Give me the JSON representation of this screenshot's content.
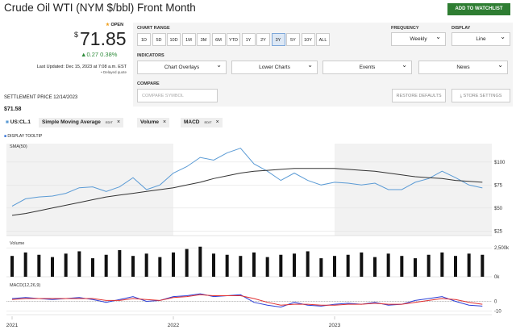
{
  "header": {
    "title": "Crude Oil WTI (NYM $/bbl) Front Month",
    "watchlist": "ADD TO WATCHLIST"
  },
  "quote": {
    "status": "OPEN",
    "currency": "$",
    "price": 71.85,
    "change": 0.27,
    "change_pct": "0.38%",
    "updated": "Last Updated: Dec 15, 2023 at 7:08 a.m. EST",
    "delayed": "Delayed quote"
  },
  "settlement": {
    "label": "SETTLEMENT PRICE 12/14/2023",
    "price": "$71.58"
  },
  "controls": {
    "chart_range_label": "CHART RANGE",
    "ranges": [
      "1D",
      "5D",
      "10D",
      "1M",
      "3M",
      "6M",
      "YTD",
      "1Y",
      "2Y",
      "3Y",
      "5Y",
      "10Y",
      "ALL"
    ],
    "selected_range": "3Y",
    "frequency_label": "FREQUENCY",
    "frequency": "Weekly",
    "display_label": "DISPLAY",
    "display": "Line",
    "indicators_label": "INDICATORS",
    "indicators": [
      "Chart Overlays",
      "Lower Charts",
      "Events",
      "News"
    ],
    "compare_label": "COMPARE",
    "compare_placeholder": "COMPARE SYMBOL",
    "restore": "RESTORE DEFAULTS",
    "store": "STORE SETTINGS"
  },
  "tags": [
    {
      "label": "Simple Moving Average",
      "edit": "EDIT"
    },
    {
      "label": "Volume"
    },
    {
      "label": "MACD",
      "edit": "EDIT"
    }
  ],
  "tooltip": "DISPLAY TOOLTIP",
  "chart_data": [
    {
      "type": "line",
      "categories": [
        "2021",
        null,
        null,
        null,
        null,
        null,
        null,
        null,
        null,
        null,
        null,
        null,
        "2022",
        null,
        null,
        null,
        null,
        null,
        null,
        null,
        null,
        null,
        null,
        null,
        "2023",
        null,
        null,
        null,
        null,
        null,
        null,
        null,
        null,
        null,
        null,
        null
      ],
      "series": [
        {
          "name": "US:CL.1",
          "color": "#5b9bd5",
          "values": [
            52,
            60,
            62,
            63,
            66,
            72,
            73,
            68,
            73,
            83,
            70,
            75,
            88,
            95,
            105,
            102,
            110,
            115,
            98,
            90,
            80,
            88,
            80,
            75,
            78,
            77,
            75,
            77,
            70,
            70,
            78,
            82,
            90,
            83,
            75,
            71.85
          ]
        },
        {
          "name": "SMA(50)",
          "color": "#333333",
          "values": [
            42,
            44,
            47,
            50,
            53,
            56,
            59,
            62,
            64,
            66,
            68,
            70,
            72,
            75,
            78,
            82,
            85,
            88,
            90,
            91,
            92,
            93,
            93,
            93,
            93,
            92,
            91,
            90,
            88,
            86,
            84,
            83,
            82,
            80,
            79,
            78
          ]
        }
      ],
      "ylim": [
        20,
        120
      ],
      "yticks": [
        {
          "value": 25,
          "label": "$25"
        },
        {
          "value": 50,
          "label": "$50"
        },
        {
          "value": 75,
          "label": "$75"
        },
        {
          "value": 100,
          "label": "$100"
        }
      ],
      "grid": true
    },
    {
      "type": "bar",
      "title": "Volume",
      "color": "#111111",
      "values": [
        1800,
        2100,
        1900,
        1700,
        2000,
        2200,
        1600,
        1900,
        2300,
        1800,
        2000,
        1700,
        2100,
        2400,
        2600,
        2000,
        1900,
        1800,
        2100,
        1700,
        1900,
        2000,
        2200,
        1600,
        1800,
        1900,
        2100,
        1700,
        2000,
        1800,
        1600,
        1900,
        2100,
        1800,
        2000,
        1900
      ],
      "ylim": [
        0,
        3000
      ],
      "yticks": [
        {
          "value": 0,
          "label": "0k"
        },
        {
          "value": 2500,
          "label": "2,500k"
        }
      ],
      "grid": true
    },
    {
      "type": "line",
      "title": "MACD(12,26,9)",
      "series": [
        {
          "color": "#2b3fd6",
          "values": [
            3,
            4,
            3,
            2,
            3,
            4,
            2,
            -1,
            2,
            5,
            0,
            1,
            5,
            6,
            8,
            5,
            6,
            7,
            -1,
            -4,
            -6,
            -1,
            -4,
            -5,
            -3,
            -2,
            -3,
            -1,
            -4,
            -3,
            1,
            3,
            5,
            0,
            -4,
            -5
          ]
        },
        {
          "color": "#e03030",
          "values": [
            2,
            3,
            3,
            3,
            3,
            3,
            3,
            1,
            1,
            3,
            2,
            1,
            4,
            5,
            7,
            6,
            6,
            6,
            3,
            -1,
            -4,
            -3,
            -3,
            -4,
            -4,
            -3,
            -3,
            -2,
            -3,
            -3,
            -1,
            1,
            3,
            2,
            -1,
            -3
          ]
        }
      ],
      "ylim": [
        -14,
        20
      ],
      "yticks": [
        -10,
        0
      ],
      "grid": true
    }
  ]
}
